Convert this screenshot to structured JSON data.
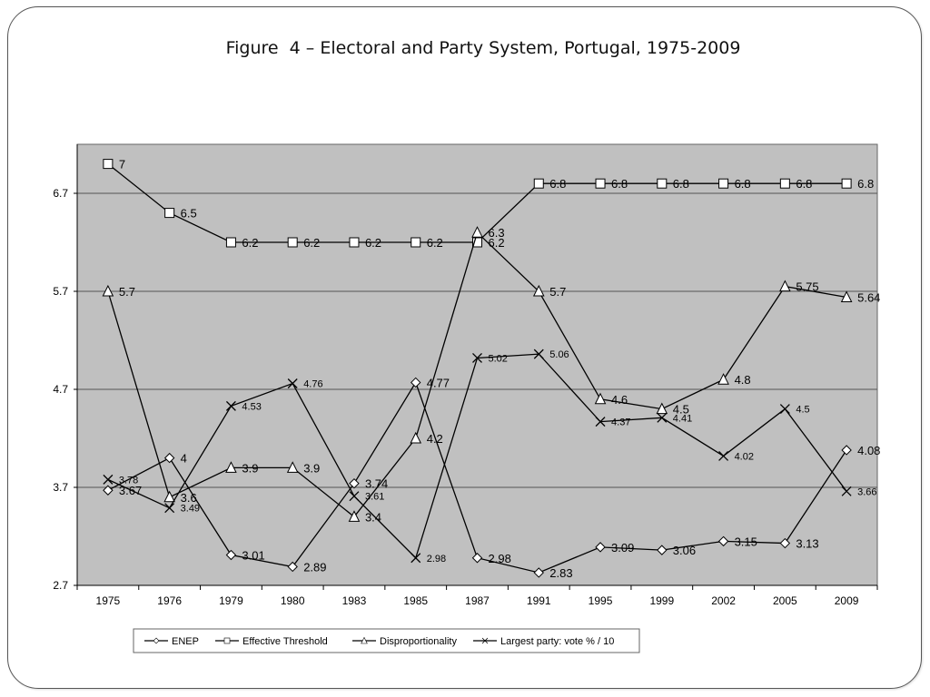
{
  "slide": {
    "title": "Figure  4 – Electoral and Party System, Portugal, 1975-2009"
  },
  "chart_data": {
    "type": "line",
    "title": "Figure  4 – Electoral and Party System, Portugal, 1975-2009",
    "xlabel": "",
    "ylabel": "",
    "categories": [
      "1975",
      "1976",
      "1979",
      "1980",
      "1983",
      "1985",
      "1987",
      "1991",
      "1995",
      "1999",
      "2002",
      "2005",
      "2009"
    ],
    "ylim": [
      2.7,
      7.2
    ],
    "yticks": [
      "2.7",
      "3.7",
      "4.7",
      "5.7",
      "6.7"
    ],
    "grid": true,
    "legend_position": "bottom",
    "plot_background": "#c0c0c0",
    "series": [
      {
        "name": "ENEP",
        "marker": "diamond",
        "values": [
          3.67,
          4,
          3.01,
          2.89,
          3.74,
          4.77,
          2.98,
          2.83,
          3.09,
          3.06,
          3.15,
          3.13,
          4.08
        ],
        "labels": [
          "3.67",
          "4",
          "3.01",
          "2.89",
          "3.74",
          "4.77",
          "2.98",
          "2.83",
          "3.09",
          "3.06",
          "3.15",
          "3.13",
          "4.08"
        ]
      },
      {
        "name": "Effective Threshold",
        "marker": "square",
        "values": [
          7,
          6.5,
          6.2,
          6.2,
          6.2,
          6.2,
          6.2,
          6.8,
          6.8,
          6.8,
          6.8,
          6.8,
          6.8
        ],
        "labels": [
          "7",
          "6.5",
          "6.2",
          "6.2",
          "6.2",
          "6.2",
          "6.2",
          "6.8",
          "6.8",
          "6.8",
          "6.8",
          "6.8",
          "6.8"
        ]
      },
      {
        "name": "Disproportionality",
        "marker": "triangle",
        "values": [
          5.7,
          3.6,
          3.9,
          3.9,
          3.4,
          4.2,
          6.3,
          5.7,
          4.6,
          4.5,
          4.8,
          5.75,
          5.64
        ],
        "labels": [
          "5.7",
          "3.6",
          "3.9",
          "3.9",
          "3.4",
          "4.2",
          "6.3",
          "5.7",
          "4.6",
          "4.5",
          "4.8",
          "5.75",
          "5.64"
        ]
      },
      {
        "name": "Largest party: vote % / 10",
        "marker": "x",
        "values": [
          3.78,
          3.49,
          4.53,
          4.76,
          3.61,
          2.98,
          5.02,
          5.06,
          4.37,
          4.41,
          4.02,
          4.5,
          3.66
        ],
        "labels": [
          "3.78",
          "3.49",
          "4.53",
          "4.76",
          "3.61",
          "2.98",
          "5.02",
          "5.06",
          "4.37",
          "4.41",
          "4.02",
          "4.5",
          "3.66"
        ]
      }
    ]
  }
}
